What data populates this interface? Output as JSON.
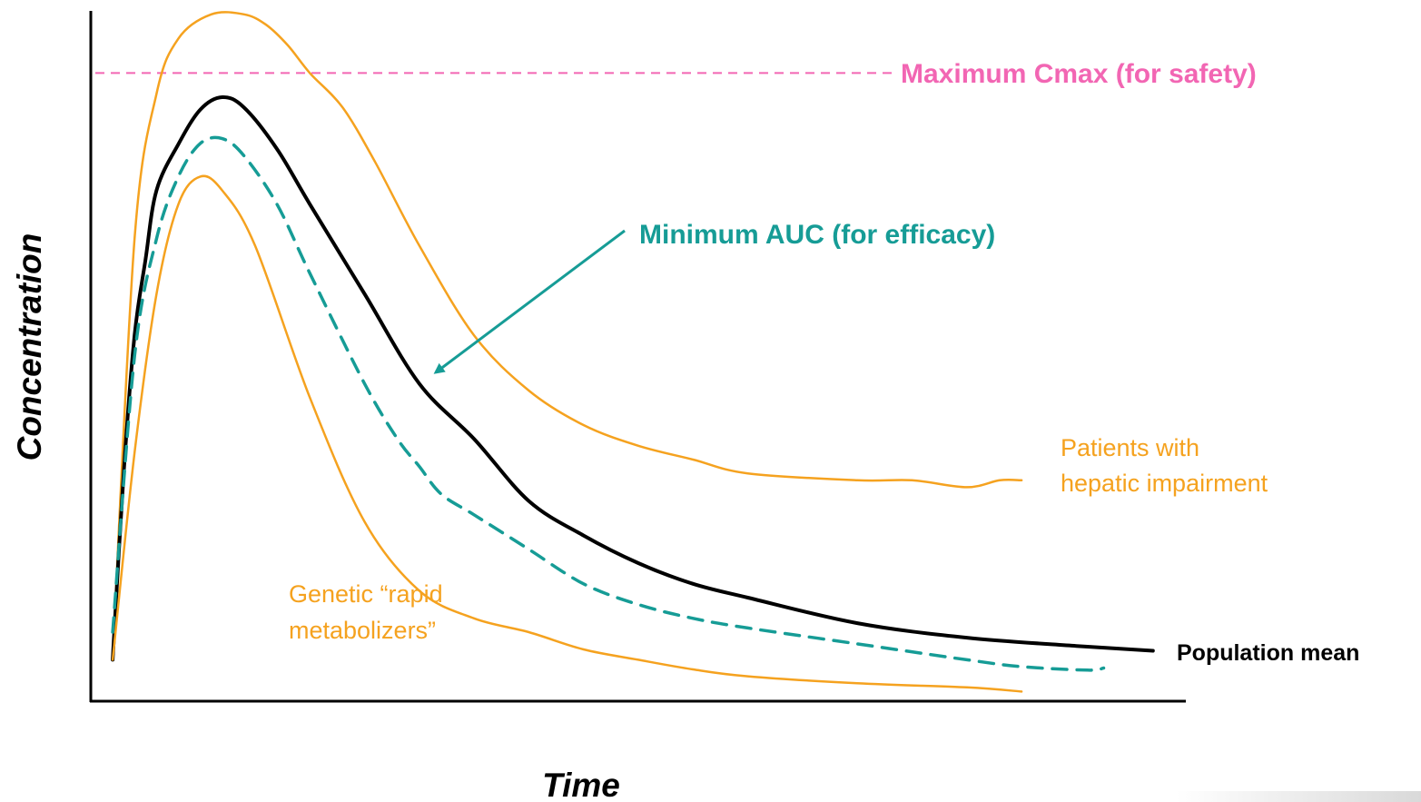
{
  "chart_data": {
    "type": "line",
    "xlabel": "Time",
    "ylabel": "Concentration",
    "xlim": [
      0,
      100
    ],
    "ylim": [
      0,
      100
    ],
    "grid": false,
    "x_ticks": "none",
    "y_ticks": "none",
    "reference_lines": [
      {
        "label": "Maximum Cmax (for safety)",
        "y": 91,
        "style": "dashed",
        "color": "#f266b3"
      }
    ],
    "annotations": [
      {
        "label": "Minimum AUC (for efficacy)",
        "color": "#169c96",
        "arrow": true,
        "points_to_series": "minimum_auc"
      }
    ],
    "series": [
      {
        "key": "hepatic",
        "name": "Patients with\nhepatic impairment",
        "color": "#f5a21f",
        "style": "solid",
        "x": [
          2,
          4,
          6,
          8,
          11,
          14,
          16,
          18,
          20,
          23,
          26,
          30,
          35,
          40,
          45,
          50,
          55,
          60,
          70,
          75,
          80,
          83,
          85
        ],
        "y": [
          6,
          67,
          88,
          96,
          99.5,
          99.5,
          98,
          95,
          91,
          86,
          78,
          66,
          53,
          45,
          40,
          37,
          35,
          33,
          32,
          32,
          31,
          32,
          32
        ]
      },
      {
        "key": "population_mean",
        "name": "Population mean",
        "color": "#000000",
        "style": "solid",
        "x": [
          2,
          3,
          4,
          5,
          6,
          8,
          10,
          12,
          14,
          17,
          20,
          25,
          30,
          35,
          40,
          45,
          50,
          55,
          60,
          70,
          80,
          90,
          97
        ],
        "y": [
          6,
          33,
          53,
          64,
          74,
          80.7,
          85.7,
          87.5,
          86,
          80,
          72,
          59,
          46,
          38,
          29,
          24,
          20,
          17,
          15,
          11.3,
          9.2,
          8,
          7.3
        ]
      },
      {
        "key": "minimum_auc",
        "name": "",
        "color": "#169c96",
        "style": "dashed",
        "x": [
          2,
          4,
          6,
          8,
          10,
          12,
          14,
          17,
          20,
          25,
          28,
          30,
          32,
          35,
          40,
          45,
          50,
          55,
          60,
          70,
          80,
          85,
          91,
          92.5
        ],
        "y": [
          10,
          50,
          67,
          76,
          80.8,
          81.5,
          79,
          72,
          62,
          46,
          38,
          34,
          30,
          27,
          22,
          17,
          14,
          12,
          10.6,
          8.3,
          6,
          5,
          4.5,
          4.8
        ]
      },
      {
        "key": "rapid_metabolizers",
        "name": "Genetic “rapid\nmetabolizers”",
        "color": "#f5a21f",
        "style": "solid",
        "x": [
          2,
          4,
          6,
          8,
          10,
          12,
          15,
          20,
          25,
          30,
          35,
          40,
          45,
          50,
          55,
          60,
          70,
          80,
          85
        ],
        "y": [
          6,
          36,
          59,
          72,
          76,
          74,
          66,
          44,
          26,
          16,
          12,
          10,
          7.5,
          6,
          4.6,
          3.6,
          2.6,
          2,
          1.4
        ]
      }
    ]
  }
}
